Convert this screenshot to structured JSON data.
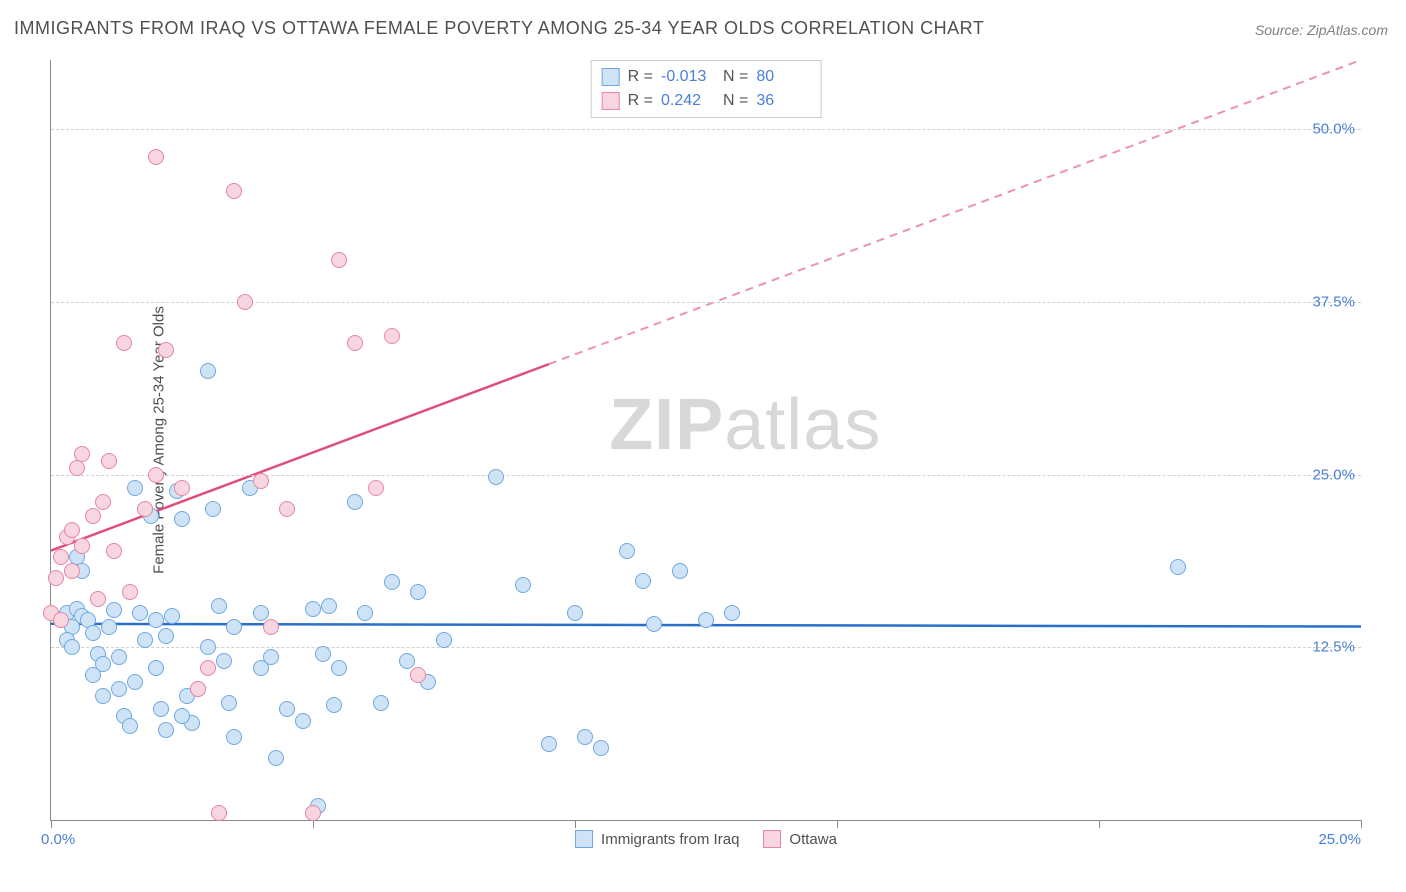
{
  "title": "IMMIGRANTS FROM IRAQ VS OTTAWA FEMALE POVERTY AMONG 25-34 YEAR OLDS CORRELATION CHART",
  "source_label": "Source: ZipAtlas.com",
  "y_axis_title": "Female Poverty Among 25-34 Year Olds",
  "watermark_bold": "ZIP",
  "watermark_light": "atlas",
  "chart": {
    "type": "scatter",
    "xlim": [
      0,
      25
    ],
    "ylim": [
      0,
      55
    ],
    "x_tick_step": 5,
    "x_label_min": "0.0%",
    "x_label_max": "25.0%",
    "y_gridlines": [
      12.5,
      25.0,
      37.5,
      50.0
    ],
    "y_labels": [
      "12.5%",
      "25.0%",
      "37.5%",
      "50.0%"
    ],
    "background_color": "#ffffff",
    "grid_color": "#d0d0d0",
    "axis_color": "#888888"
  },
  "series": [
    {
      "name": "Immigrants from Iraq",
      "marker_fill": "#cfe3f7",
      "marker_stroke": "#6fa8e0",
      "line_color": "#2a6fc9",
      "R": "-0.013",
      "N": "80",
      "trend": {
        "x1": 0,
        "y1": 14.2,
        "x2": 25,
        "y2": 14.0,
        "solid_to_x": 25
      },
      "points": [
        [
          0.2,
          14.5
        ],
        [
          0.3,
          15.0
        ],
        [
          0.4,
          14.0
        ],
        [
          0.5,
          15.3
        ],
        [
          0.6,
          14.8
        ],
        [
          0.3,
          13.0
        ],
        [
          0.4,
          12.5
        ],
        [
          0.5,
          19.0
        ],
        [
          0.6,
          18.0
        ],
        [
          0.7,
          14.5
        ],
        [
          0.8,
          13.5
        ],
        [
          0.9,
          12.0
        ],
        [
          1.0,
          11.3
        ],
        [
          1.1,
          14.0
        ],
        [
          1.2,
          15.2
        ],
        [
          1.3,
          9.5
        ],
        [
          1.4,
          7.5
        ],
        [
          1.5,
          6.8
        ],
        [
          1.6,
          24.0
        ],
        [
          1.7,
          15.0
        ],
        [
          1.8,
          13.0
        ],
        [
          1.9,
          22.0
        ],
        [
          2.0,
          11.0
        ],
        [
          2.1,
          8.0
        ],
        [
          2.2,
          6.5
        ],
        [
          2.3,
          14.8
        ],
        [
          2.4,
          23.8
        ],
        [
          2.5,
          21.8
        ],
        [
          2.6,
          9.0
        ],
        [
          2.7,
          7.0
        ],
        [
          3.0,
          32.5
        ],
        [
          3.1,
          22.5
        ],
        [
          3.2,
          15.5
        ],
        [
          3.3,
          11.5
        ],
        [
          3.4,
          8.5
        ],
        [
          3.5,
          6.0
        ],
        [
          3.8,
          24.0
        ],
        [
          4.0,
          15.0
        ],
        [
          4.2,
          11.8
        ],
        [
          4.3,
          4.5
        ],
        [
          4.5,
          8.0
        ],
        [
          4.8,
          7.2
        ],
        [
          5.0,
          15.3
        ],
        [
          5.1,
          1.0
        ],
        [
          5.2,
          12.0
        ],
        [
          5.3,
          15.5
        ],
        [
          5.4,
          8.3
        ],
        [
          5.5,
          11.0
        ],
        [
          5.8,
          23.0
        ],
        [
          6.0,
          15.0
        ],
        [
          6.3,
          8.5
        ],
        [
          6.5,
          17.2
        ],
        [
          6.8,
          11.5
        ],
        [
          7.0,
          16.5
        ],
        [
          7.2,
          10.0
        ],
        [
          7.5,
          13.0
        ],
        [
          8.5,
          24.8
        ],
        [
          9.0,
          17.0
        ],
        [
          9.5,
          5.5
        ],
        [
          10.0,
          15.0
        ],
        [
          10.2,
          6.0
        ],
        [
          10.5,
          5.2
        ],
        [
          11.0,
          19.5
        ],
        [
          11.3,
          17.3
        ],
        [
          11.5,
          14.2
        ],
        [
          12.0,
          18.0
        ],
        [
          12.5,
          14.5
        ],
        [
          13.0,
          15.0
        ],
        [
          21.5,
          18.3
        ],
        [
          0.8,
          10.5
        ],
        [
          1.0,
          9.0
        ],
        [
          1.3,
          11.8
        ],
        [
          1.6,
          10.0
        ],
        [
          2.0,
          14.5
        ],
        [
          2.2,
          13.3
        ],
        [
          2.5,
          7.5
        ],
        [
          2.8,
          9.5
        ],
        [
          3.0,
          12.5
        ],
        [
          3.5,
          14.0
        ],
        [
          4.0,
          11.0
        ]
      ]
    },
    {
      "name": "Ottawa",
      "marker_fill": "#f8d6e0",
      "marker_stroke": "#e685a4",
      "line_color": "#e14d7b",
      "R": "0.242",
      "N": "36",
      "trend": {
        "x1": 0,
        "y1": 19.5,
        "x2": 25,
        "y2": 55.0,
        "solid_to_x": 9.5
      },
      "points": [
        [
          0.0,
          15.0
        ],
        [
          0.1,
          17.5
        ],
        [
          0.2,
          19.0
        ],
        [
          0.3,
          20.5
        ],
        [
          0.4,
          18.0
        ],
        [
          0.5,
          25.5
        ],
        [
          0.6,
          26.5
        ],
        [
          0.8,
          22.0
        ],
        [
          1.0,
          23.0
        ],
        [
          1.2,
          19.5
        ],
        [
          1.4,
          34.5
        ],
        [
          1.5,
          16.5
        ],
        [
          1.8,
          22.5
        ],
        [
          2.0,
          48.0
        ],
        [
          2.2,
          34.0
        ],
        [
          2.5,
          24.0
        ],
        [
          2.8,
          9.5
        ],
        [
          3.0,
          11.0
        ],
        [
          3.2,
          0.5
        ],
        [
          3.5,
          45.5
        ],
        [
          3.7,
          37.5
        ],
        [
          4.0,
          24.5
        ],
        [
          4.2,
          14.0
        ],
        [
          4.5,
          22.5
        ],
        [
          5.0,
          0.5
        ],
        [
          5.5,
          40.5
        ],
        [
          5.8,
          34.5
        ],
        [
          6.2,
          24.0
        ],
        [
          6.5,
          35.0
        ],
        [
          7.0,
          10.5
        ],
        [
          0.2,
          14.5
        ],
        [
          0.4,
          21.0
        ],
        [
          0.6,
          19.8
        ],
        [
          0.9,
          16.0
        ],
        [
          1.1,
          26.0
        ],
        [
          2.0,
          25.0
        ]
      ]
    }
  ],
  "stats_box": {
    "R_label": "R =",
    "N_label": "N ="
  },
  "legend": {
    "items": [
      "Immigrants from Iraq",
      "Ottawa"
    ]
  }
}
